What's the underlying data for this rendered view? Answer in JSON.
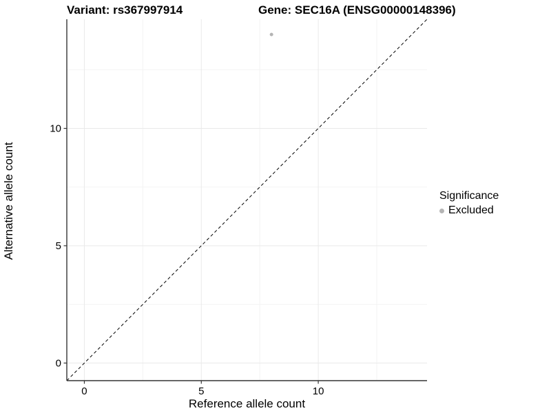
{
  "chart_data": {
    "type": "scatter",
    "titles": {
      "left": "Variant: rs367997914",
      "right": "Gene: SEC16A (ENSG00000148396)"
    },
    "xlabel": "Reference allele count",
    "ylabel": "Alternative allele count",
    "xlim": [
      -0.75,
      14.65
    ],
    "ylim": [
      -0.75,
      14.65
    ],
    "x_major_ticks": [
      0,
      5,
      10
    ],
    "y_major_ticks": [
      0,
      5,
      10
    ],
    "x_minor_ticks": [
      2.5,
      7.5,
      12.5
    ],
    "y_minor_ticks": [
      2.5,
      7.5,
      12.5
    ],
    "grid": true,
    "points": [
      {
        "x": 8,
        "y": 14,
        "series": "Excluded"
      }
    ],
    "reference_line": {
      "slope": 1,
      "intercept": 0,
      "style": "dashed"
    },
    "legend": {
      "title": "Significance",
      "position": "right",
      "entries": [
        {
          "label": "Excluded",
          "color": "#b5b5b5"
        }
      ]
    },
    "colors": {
      "point": "#b4b4b4",
      "axis": "#333333",
      "grid_major": "#e9e9e9",
      "grid_minor": "#f3f3f3",
      "text": "#000000",
      "reference_line": "#000000"
    }
  }
}
